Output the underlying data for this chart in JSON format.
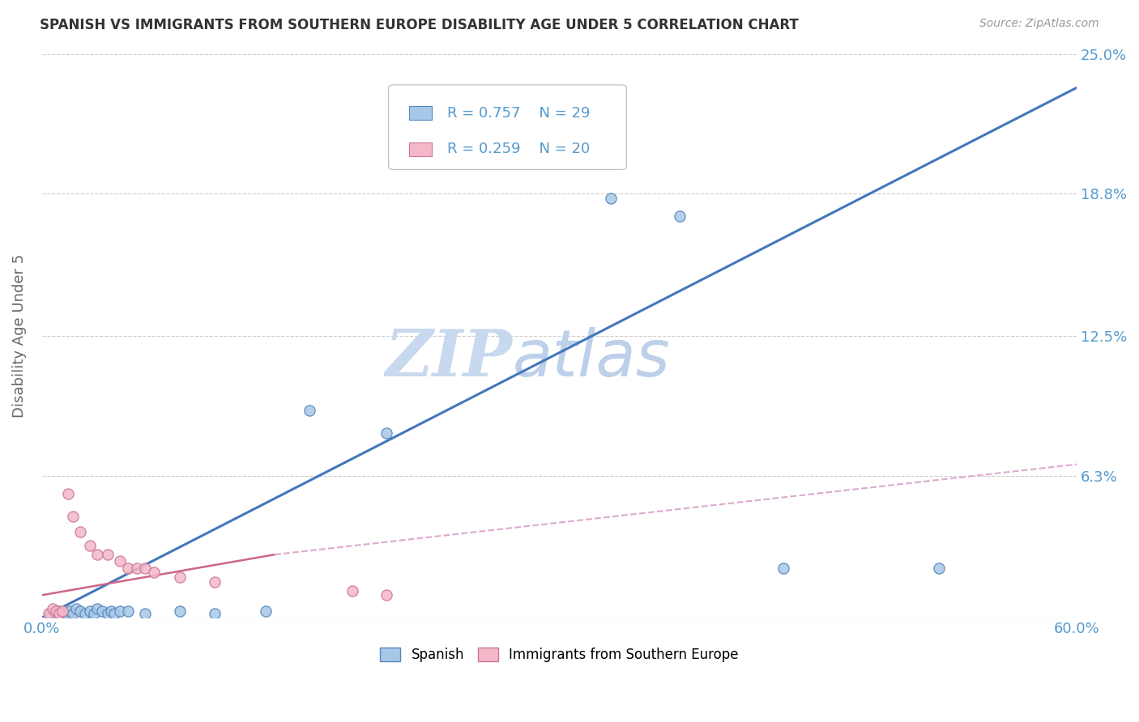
{
  "title": "SPANISH VS IMMIGRANTS FROM SOUTHERN EUROPE DISABILITY AGE UNDER 5 CORRELATION CHART",
  "source": "Source: ZipAtlas.com",
  "ylabel": "Disability Age Under 5",
  "xlim": [
    0.0,
    0.6
  ],
  "ylim": [
    0.0,
    0.25
  ],
  "ytick_labels": [
    "25.0%",
    "18.8%",
    "12.5%",
    "6.3%"
  ],
  "ytick_vals": [
    0.25,
    0.188,
    0.125,
    0.063
  ],
  "legend_r1": "R = 0.757",
  "legend_n1": "N = 29",
  "legend_r2": "R = 0.259",
  "legend_n2": "N = 20",
  "blue_color": "#a8c8e8",
  "pink_color": "#f4b8c8",
  "blue_edge_color": "#5588bb",
  "pink_edge_color": "#cc7799",
  "blue_line_color": "#4477bb",
  "pink_line_color": "#cc6688",
  "pink_dash_color": "#ddaacc",
  "watermark_zip_color": "#c5d8ee",
  "watermark_atlas_color": "#b8cfe8",
  "tick_color": "#5599cc",
  "ylabel_color": "#666666",
  "title_color": "#333333",
  "source_color": "#999999",
  "grid_color": "#cccccc",
  "spanish_points": [
    [
      0.005,
      0.002
    ],
    [
      0.008,
      0.001
    ],
    [
      0.01,
      0.003
    ],
    [
      0.012,
      0.002
    ],
    [
      0.015,
      0.001
    ],
    [
      0.016,
      0.003
    ],
    [
      0.018,
      0.002
    ],
    [
      0.02,
      0.004
    ],
    [
      0.022,
      0.003
    ],
    [
      0.025,
      0.002
    ],
    [
      0.028,
      0.003
    ],
    [
      0.03,
      0.002
    ],
    [
      0.032,
      0.004
    ],
    [
      0.035,
      0.003
    ],
    [
      0.038,
      0.002
    ],
    [
      0.04,
      0.003
    ],
    [
      0.042,
      0.002
    ],
    [
      0.045,
      0.003
    ],
    [
      0.05,
      0.003
    ],
    [
      0.06,
      0.002
    ],
    [
      0.08,
      0.003
    ],
    [
      0.1,
      0.002
    ],
    [
      0.13,
      0.003
    ],
    [
      0.155,
      0.092
    ],
    [
      0.2,
      0.082
    ],
    [
      0.33,
      0.186
    ],
    [
      0.37,
      0.178
    ],
    [
      0.43,
      0.022
    ],
    [
      0.52,
      0.022
    ]
  ],
  "immigrant_points": [
    [
      0.004,
      0.002
    ],
    [
      0.006,
      0.004
    ],
    [
      0.008,
      0.003
    ],
    [
      0.01,
      0.002
    ],
    [
      0.012,
      0.003
    ],
    [
      0.015,
      0.055
    ],
    [
      0.018,
      0.045
    ],
    [
      0.022,
      0.038
    ],
    [
      0.028,
      0.032
    ],
    [
      0.032,
      0.028
    ],
    [
      0.038,
      0.028
    ],
    [
      0.045,
      0.025
    ],
    [
      0.05,
      0.022
    ],
    [
      0.055,
      0.022
    ],
    [
      0.06,
      0.022
    ],
    [
      0.065,
      0.02
    ],
    [
      0.08,
      0.018
    ],
    [
      0.1,
      0.016
    ],
    [
      0.18,
      0.012
    ],
    [
      0.2,
      0.01
    ]
  ],
  "blue_line": [
    [
      0.0,
      0.0
    ],
    [
      0.6,
      0.235
    ]
  ],
  "pink_solid_line": [
    [
      0.0,
      0.01
    ],
    [
      0.135,
      0.028
    ]
  ],
  "pink_dash_line": [
    [
      0.135,
      0.028
    ],
    [
      0.6,
      0.068
    ]
  ]
}
